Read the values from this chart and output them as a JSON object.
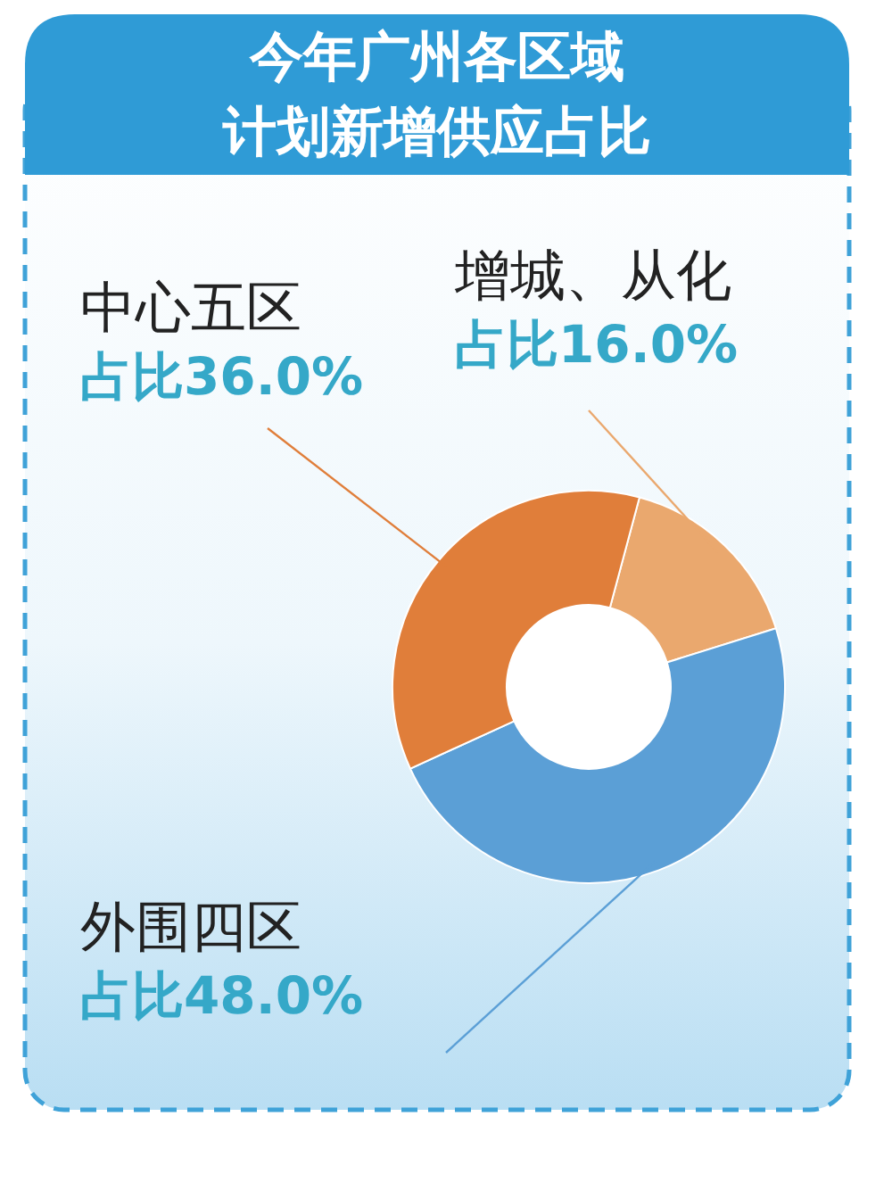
{
  "chart_data": {
    "type": "donut",
    "title": "今年广州各区域计划新增供应占比",
    "categories": [
      "增城、从化",
      "外围四区",
      "中心五区"
    ],
    "values": [
      16.0,
      48.0,
      36.0
    ],
    "colors": [
      "#eaa86e",
      "#5b9fd6",
      "#e07e3a"
    ],
    "value_labels": [
      "占比16.0%",
      "占比48.0%",
      "占比36.0%"
    ]
  }
}
